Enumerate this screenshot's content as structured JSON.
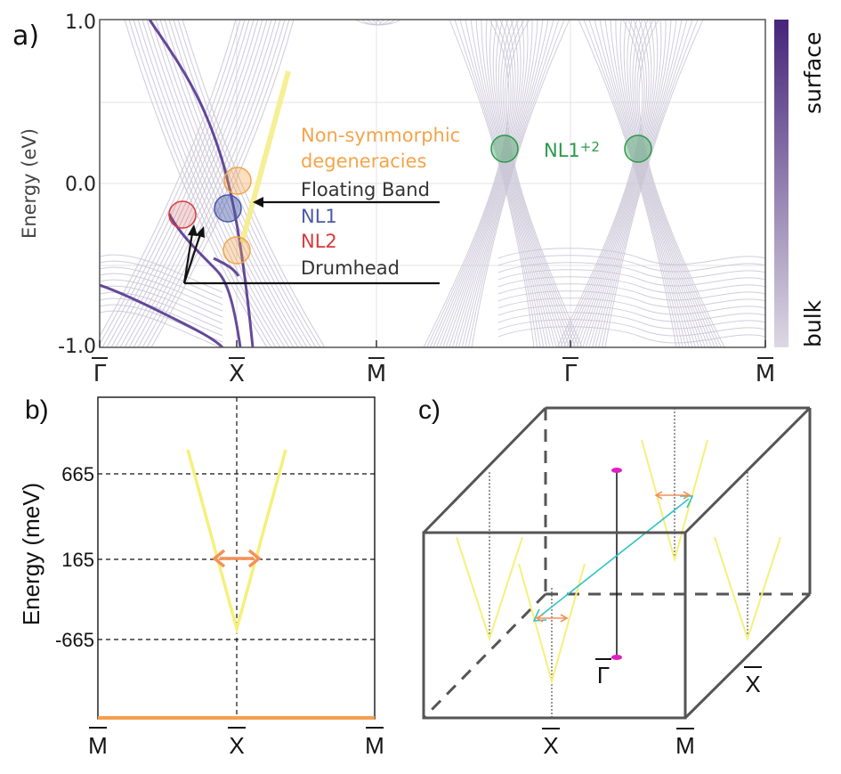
{
  "panel_a": {
    "label": "a)",
    "ylabel": "Energy (eV)",
    "yticks": [
      "1.0",
      "0.0",
      "-1.0"
    ],
    "xticks": [
      "Γ",
      "X",
      "M",
      "Γ",
      "M"
    ],
    "colorbar": {
      "top_label": "surface",
      "bottom_label": "bulk",
      "colors": [
        "#d9d5e0",
        "#4a2a7a"
      ]
    },
    "annotations": {
      "nonsym_line1": "Non-symmorphic",
      "nonsym_line2": "degeneracies",
      "floating": "Floating Band",
      "nl1": "NL1",
      "nl2": "NL2",
      "drumhead": "Drumhead",
      "nl12_main": "NL1",
      "nl12_sup": "+2"
    },
    "colors": {
      "nonsym": "#f4a44a",
      "nl1": "#4a5aa8",
      "nl2": "#d93a3a",
      "nl12": "#2a9a4a",
      "band_bulk": "#c9c4d6",
      "band_surface": "#4a2a8a"
    }
  },
  "panel_b": {
    "label": "b)",
    "ylabel": "Energy (meV)",
    "yticks": [
      "665",
      "165",
      "-665"
    ],
    "xticks": [
      "M",
      "X",
      "M"
    ],
    "colors": {
      "cone": "#f5f07a",
      "arrow": "#f4905a",
      "baseline": "#f4a050"
    }
  },
  "panel_c": {
    "label": "c)",
    "labels": {
      "gamma": "Γ",
      "x_bottom": "X",
      "m_bottom": "M",
      "x_side": "X"
    },
    "colors": {
      "box": "#555555",
      "cone": "#f5f07a",
      "arrow": "#f4905a",
      "diag": "#2ec4c4",
      "dot": "#e020c0"
    }
  },
  "chart_data": [
    {
      "type": "line",
      "title": "",
      "ylabel": "Energy (eV)",
      "xlabel": "",
      "ylim": [
        -1.0,
        1.0
      ],
      "x_ticks": [
        "Γ",
        "X",
        "M",
        "Γ",
        "M"
      ],
      "features": [
        {
          "name": "NL1",
          "k": "near X",
          "energy": -0.15
        },
        {
          "name": "NL2",
          "k": "between Γ and X",
          "energy": -0.2
        },
        {
          "name": "Non-symmorphic degeneracies",
          "k": "X",
          "energy": [
            0.0,
            -0.4
          ]
        },
        {
          "name": "NL1+2",
          "k": "either side of Γ",
          "energy": 0.2
        }
      ],
      "colorbar": [
        "bulk",
        "surface"
      ]
    },
    {
      "type": "line",
      "title": "",
      "ylabel": "Energy (meV)",
      "xlabel": "",
      "yticks": [
        665,
        165,
        -665
      ],
      "x_ticks": [
        "M",
        "X",
        "M"
      ],
      "cone_apex_meV": -665
    }
  ]
}
